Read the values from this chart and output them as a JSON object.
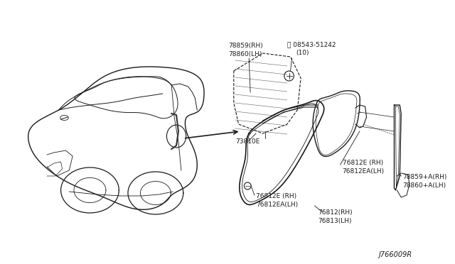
{
  "background_color": "#ffffff",
  "diagram_code": "J766009R",
  "line_color": "#1a1a1a",
  "text_color": "#1a1a1a",
  "font_size": 6.5,
  "labels": {
    "lbl1_line1": "78859(RH)",
    "lbl1_line2": "78860(LH)",
    "lbl2_line1": "08543-51242",
    "lbl2_line2": "(10)",
    "lbl3": "73810E",
    "lbl4_line1": "76812E (RH)",
    "lbl4_line2": "76812EA(LH)",
    "lbl5_line1": "76812E (RH)",
    "lbl5_line2": "76812EA(LH)",
    "lbl6_line1": "78859+A(RH)",
    "lbl6_line2": "78860+A(LH)",
    "lbl7_line1": "76812(RH)",
    "lbl7_line2": "76813(LH)"
  }
}
